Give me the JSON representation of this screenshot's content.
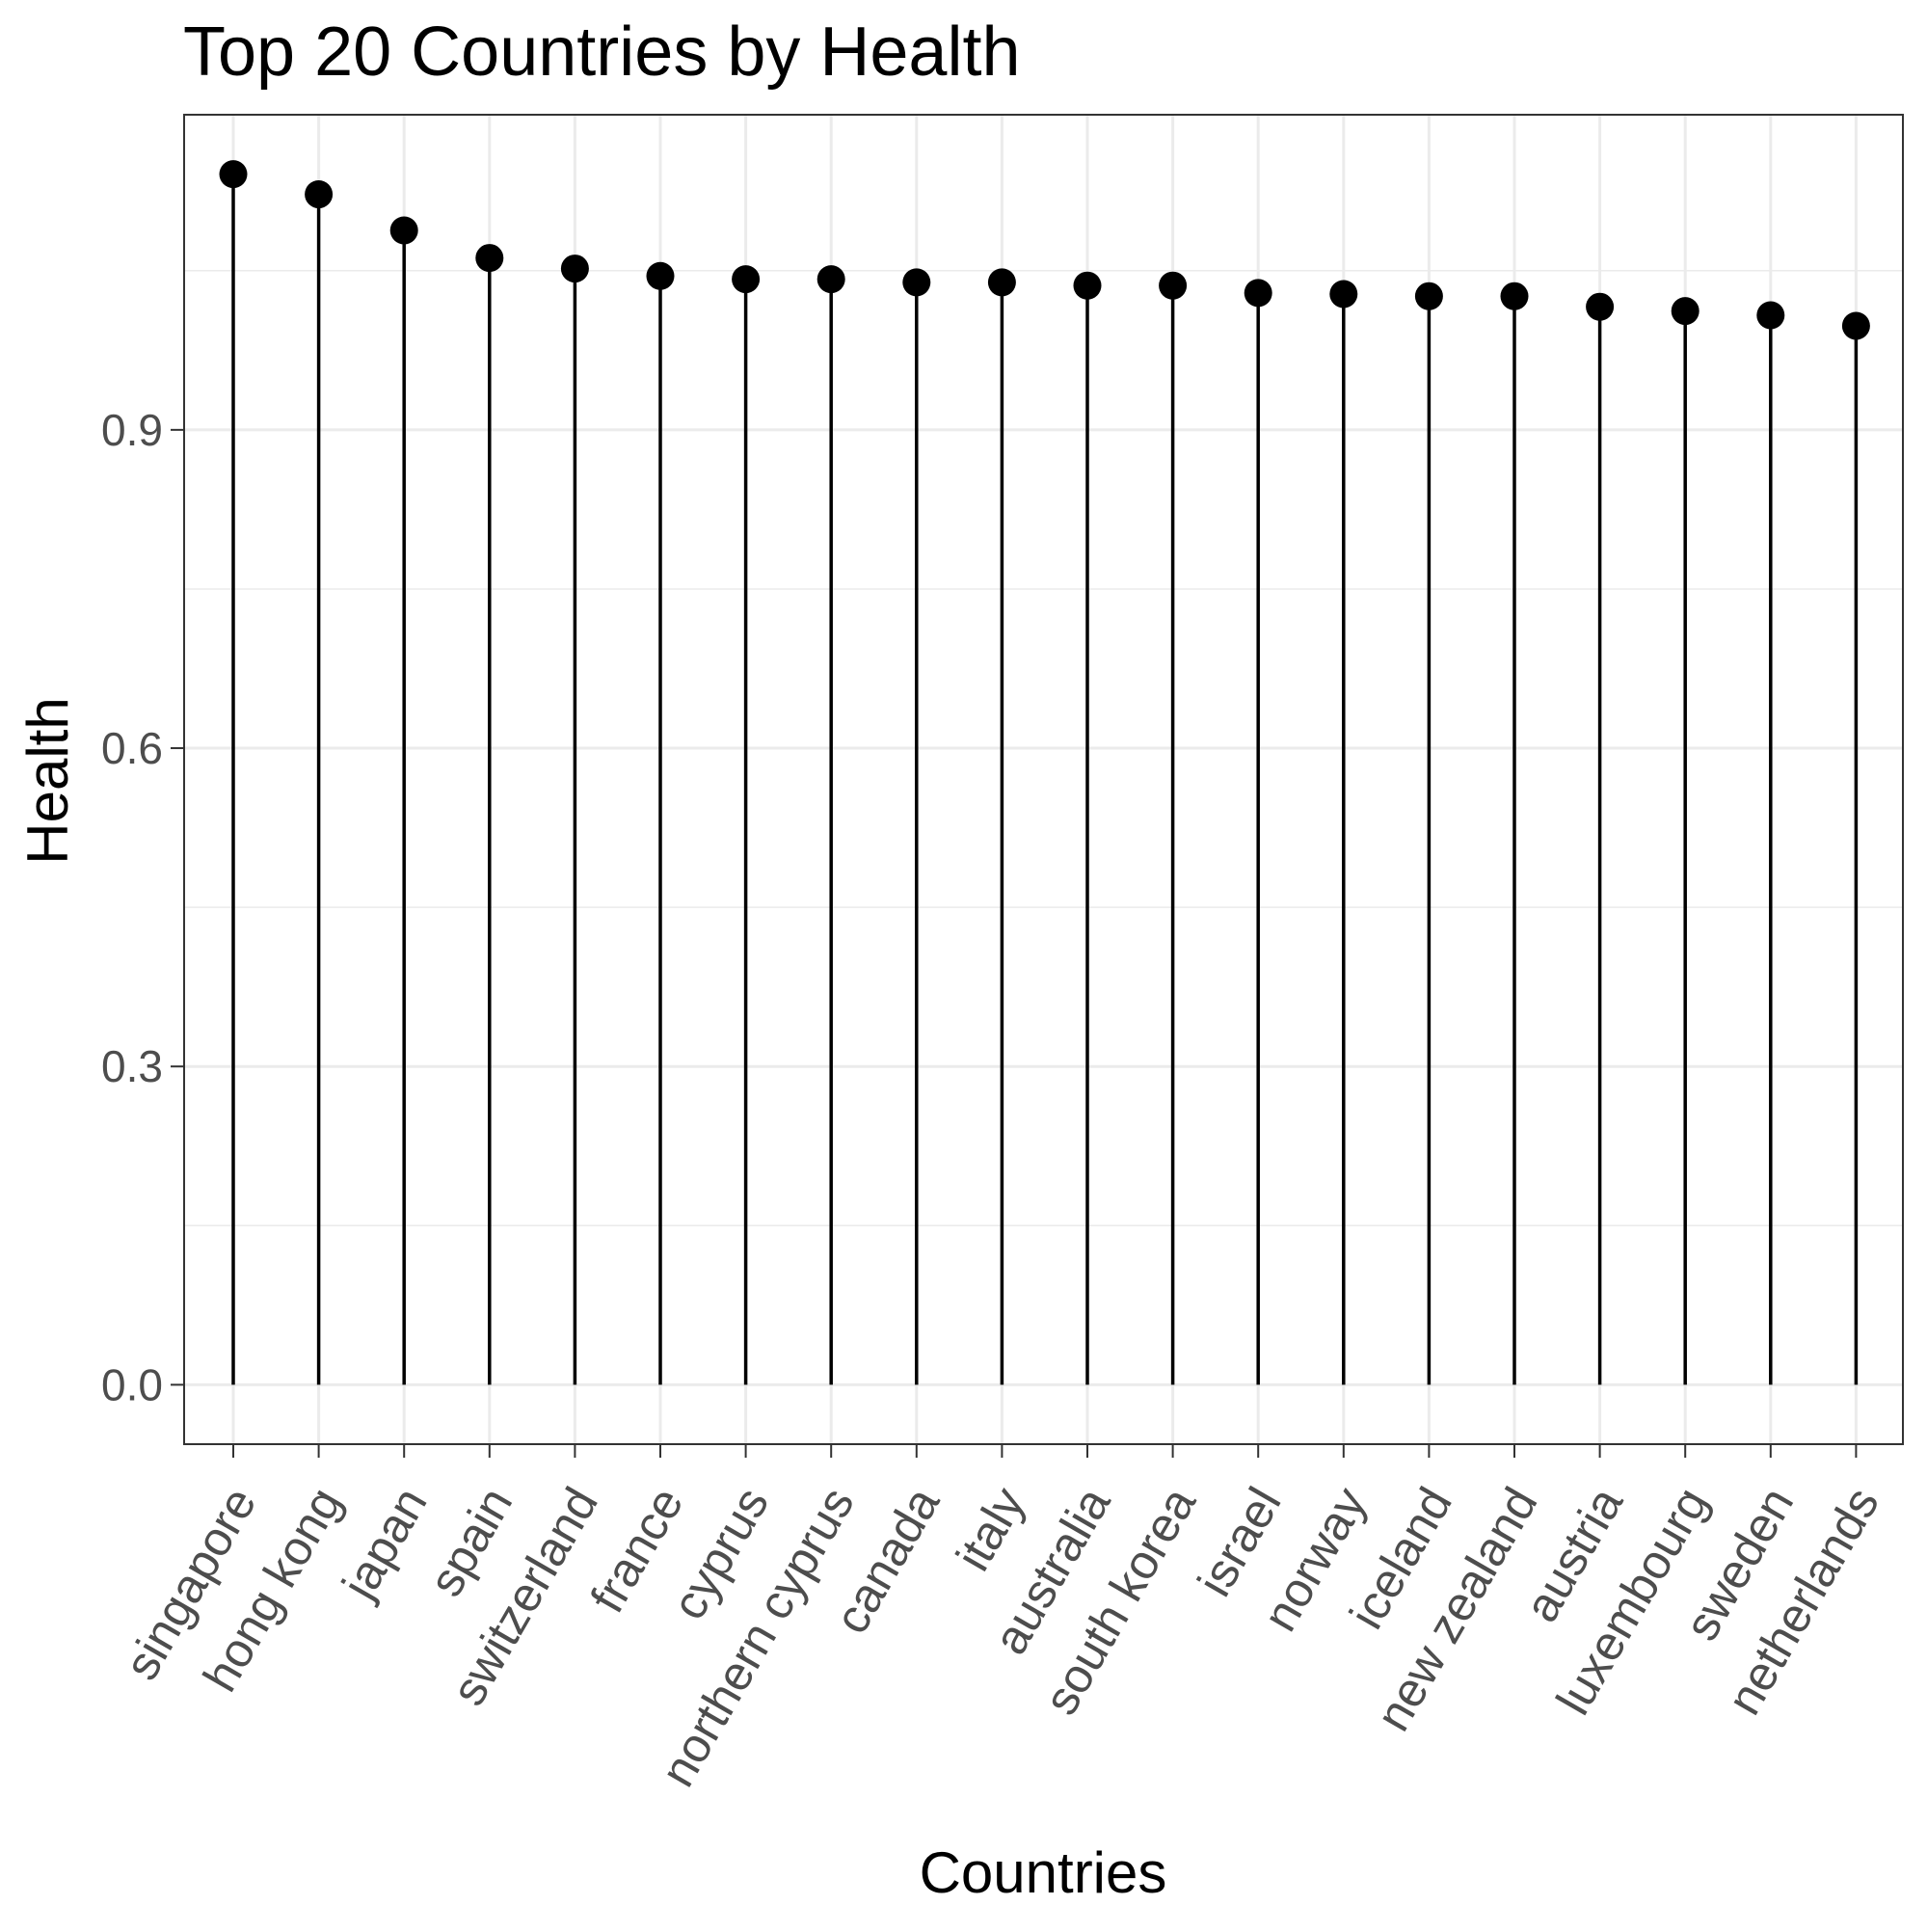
{
  "chart_data": {
    "type": "lollipop",
    "title": "Top 20 Countries by Health",
    "xlabel": "Countries",
    "ylabel": "Health",
    "categories": [
      "singapore",
      "hong kong",
      "japan",
      "spain",
      "switzerland",
      "france",
      "cyprus",
      "northern cyprus",
      "canada",
      "italy",
      "australia",
      "south korea",
      "israel",
      "norway",
      "iceland",
      "new zealand",
      "austria",
      "luxembourg",
      "sweden",
      "netherlands"
    ],
    "values": [
      1.141,
      1.122,
      1.088,
      1.062,
      1.052,
      1.045,
      1.042,
      1.042,
      1.039,
      1.039,
      1.036,
      1.036,
      1.029,
      1.028,
      1.026,
      1.026,
      1.016,
      1.012,
      1.008,
      0.998
    ],
    "yticks": [
      "0.0",
      "0.3",
      "0.6",
      "0.9"
    ],
    "ylim": [
      -0.056,
      1.197
    ],
    "grid": true,
    "theme": "bw",
    "colors": {
      "marks": "#000000",
      "grid": "#ebebeb",
      "panel_border": "#333333",
      "tick_text": "#4d4d4d"
    }
  }
}
